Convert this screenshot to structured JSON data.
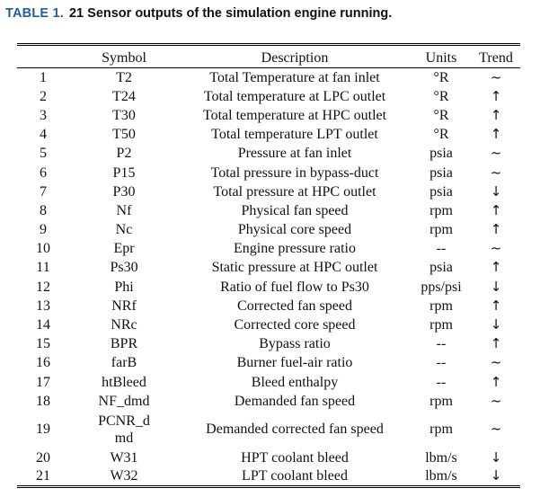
{
  "caption": {
    "label": "TABLE 1.",
    "title": "21 Sensor outputs of the simulation engine running."
  },
  "table": {
    "headers": [
      "",
      "Symbol",
      "Description",
      "Units",
      "Trend"
    ],
    "rows": [
      {
        "no": "1",
        "symbol": "T2",
        "description": "Total Temperature at fan inlet",
        "units": "°R",
        "trend": "~"
      },
      {
        "no": "2",
        "symbol": "T24",
        "description": "Total temperature at LPC outlet",
        "units": "°R",
        "trend": "↑"
      },
      {
        "no": "3",
        "symbol": "T30",
        "description": "Total temperature at HPC outlet",
        "units": "°R",
        "trend": "↑"
      },
      {
        "no": "4",
        "symbol": "T50",
        "description": "Total temperature LPT outlet",
        "units": "°R",
        "trend": "↑"
      },
      {
        "no": "5",
        "symbol": "P2",
        "description": "Pressure at fan inlet",
        "units": "psia",
        "trend": "~"
      },
      {
        "no": "6",
        "symbol": "P15",
        "description": "Total pressure in bypass-duct",
        "units": "psia",
        "trend": "~"
      },
      {
        "no": "7",
        "symbol": "P30",
        "description": "Total pressure at HPC outlet",
        "units": "psia",
        "trend": "↓"
      },
      {
        "no": "8",
        "symbol": "Nf",
        "description": "Physical fan speed",
        "units": "rpm",
        "trend": "↑"
      },
      {
        "no": "9",
        "symbol": "Nc",
        "description": "Physical core speed",
        "units": "rpm",
        "trend": "↑"
      },
      {
        "no": "10",
        "symbol": "Epr",
        "description": "Engine pressure ratio",
        "units": "--",
        "trend": "~"
      },
      {
        "no": "11",
        "symbol": "Ps30",
        "description": "Static pressure at HPC outlet",
        "units": "psia",
        "trend": "↑"
      },
      {
        "no": "12",
        "symbol": "Phi",
        "description": "Ratio of fuel flow to Ps30",
        "units": "pps/psi",
        "trend": "↓"
      },
      {
        "no": "13",
        "symbol": "NRf",
        "description": "Corrected fan speed",
        "units": "rpm",
        "trend": "↑"
      },
      {
        "no": "14",
        "symbol": "NRc",
        "description": "Corrected core speed",
        "units": "rpm",
        "trend": "↓"
      },
      {
        "no": "15",
        "symbol": "BPR",
        "description": "Bypass ratio",
        "units": "--",
        "trend": "↑"
      },
      {
        "no": "16",
        "symbol": "farB",
        "description": "Burner fuel-air ratio",
        "units": "--",
        "trend": "~"
      },
      {
        "no": "17",
        "symbol": "htBleed",
        "description": "Bleed enthalpy",
        "units": "--",
        "trend": "↑"
      },
      {
        "no": "18",
        "symbol": "NF_dmd",
        "description": "Demanded fan speed",
        "units": "rpm",
        "trend": "~"
      },
      {
        "no": "19",
        "symbol": "PCNR_dmd",
        "description": "Demanded corrected fan speed",
        "units": "rpm",
        "trend": "~"
      },
      {
        "no": "20",
        "symbol": "W31",
        "description": "HPT coolant bleed",
        "units": "lbm/s",
        "trend": "↓"
      },
      {
        "no": "21",
        "symbol": "W32",
        "description": "LPT coolant bleed",
        "units": "lbm/s",
        "trend": "↓"
      }
    ]
  }
}
